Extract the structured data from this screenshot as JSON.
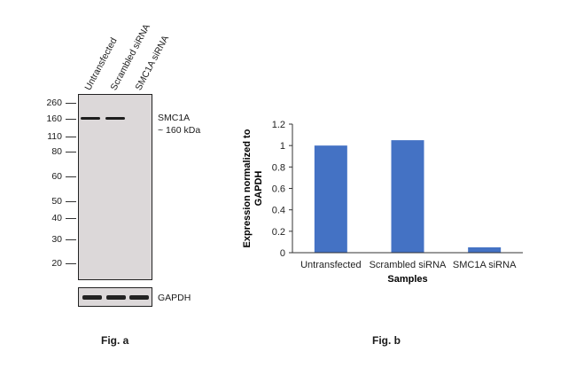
{
  "blot": {
    "lanes": [
      "Untransfected",
      "Scrambled siRNA",
      "SMC1A siRNA"
    ],
    "mw_markers": [
      "260",
      "160",
      "110",
      "80",
      "60",
      "50",
      "40",
      "30",
      "20"
    ],
    "target_label": "SMC1A",
    "target_size": "~ 160 kDa",
    "loading_label": "GAPDH",
    "figure_label": "Fig. a"
  },
  "chart_data": {
    "type": "bar",
    "categories": [
      "Untransfected",
      "Scrambled siRNA",
      "SMC1A siRNA"
    ],
    "values": [
      1.0,
      1.05,
      0.05
    ],
    "ylabel": "Expression  normalized to GAPDH",
    "xlabel": "Samples",
    "ylim": [
      0,
      1.2
    ],
    "yticks": [
      "0",
      "0.2",
      "0.4",
      "0.6",
      "0.8",
      "1",
      "1.2"
    ],
    "bar_color": "#4472c4",
    "grid": false,
    "figure_label": "Fig. b"
  }
}
